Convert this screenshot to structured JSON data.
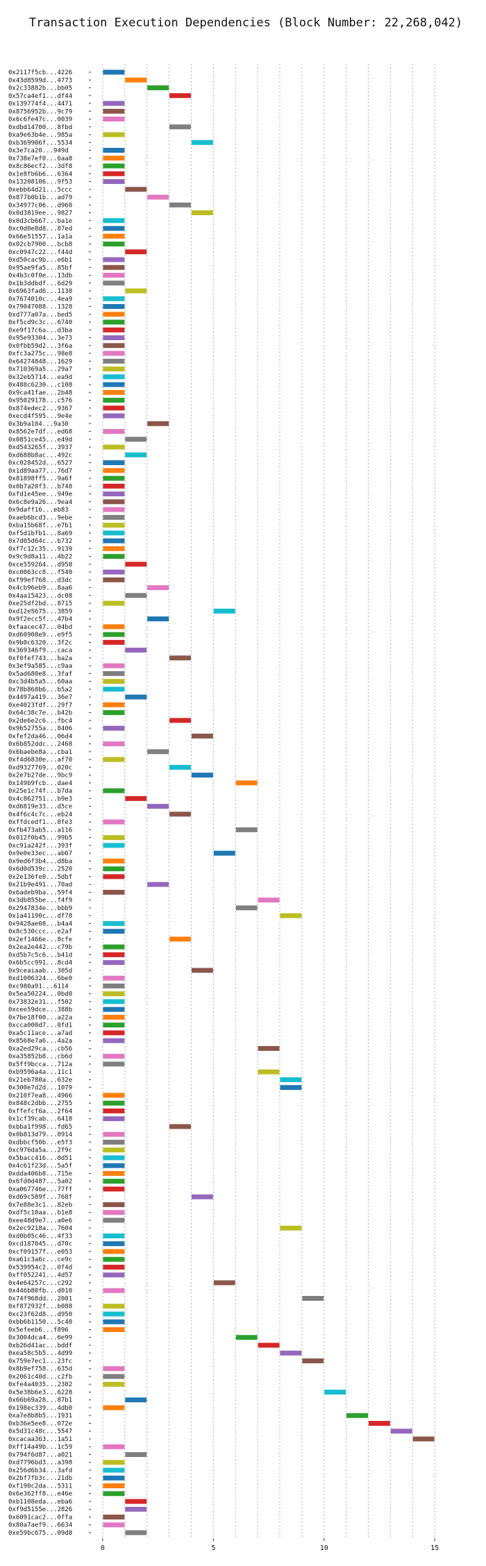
{
  "chart_data": {
    "type": "bar",
    "title": "Transaction Execution Dependencies (Block Number: 22,268,042)",
    "xlabel": "",
    "ylabel": "",
    "xlim": [
      -0.5,
      16
    ],
    "x_ticks": [
      0,
      5,
      10,
      15
    ],
    "grid": "vertical dotted",
    "palette": [
      "#1f77b4",
      "#ff7f0e",
      "#2ca02c",
      "#d62728",
      "#9467bd",
      "#8c564b",
      "#e377c2",
      "#7f7f7f",
      "#bcbd22",
      "#17becf"
    ],
    "transactions": [
      {
        "label": "0x2117f5cb...4226",
        "start": 0,
        "end": 1
      },
      {
        "label": "0x43d8599d...4773",
        "start": 1,
        "end": 2
      },
      {
        "label": "0x2c33882b...bb05",
        "start": 2,
        "end": 3
      },
      {
        "label": "0x57ca4ef1...df44",
        "start": 3,
        "end": 4
      },
      {
        "label": "0x139774f4...4471",
        "start": 0,
        "end": 1
      },
      {
        "label": "0x8756952b...9c79",
        "start": 0,
        "end": 1
      },
      {
        "label": "0x6c6fe47c...0039",
        "start": 0,
        "end": 1
      },
      {
        "label": "0xdbd14700...8fbd",
        "start": 3,
        "end": 4
      },
      {
        "label": "0xa9e63b4e...985a",
        "start": 0,
        "end": 1
      },
      {
        "label": "0xb369906f...5534",
        "start": 4,
        "end": 5
      },
      {
        "label": "0x3e7ca20...949d",
        "start": 0,
        "end": 1
      },
      {
        "label": "0x738e7ef0...6aa8",
        "start": 0,
        "end": 1
      },
      {
        "label": "0x8c86ecf2...3df8",
        "start": 0,
        "end": 1
      },
      {
        "label": "0x1e8fb6b6...6364",
        "start": 0,
        "end": 1
      },
      {
        "label": "0x13208106...9f53",
        "start": 0,
        "end": 1
      },
      {
        "label": "0xebb64d21...5ccc",
        "start": 1,
        "end": 2
      },
      {
        "label": "0x877b0b1b...ad79",
        "start": 2,
        "end": 3
      },
      {
        "label": "0x34977c06...d960",
        "start": 3,
        "end": 4
      },
      {
        "label": "0x0d3819ee...9827",
        "start": 4,
        "end": 5
      },
      {
        "label": "0x0d3cb667...ba1e",
        "start": 0,
        "end": 1
      },
      {
        "label": "0xc0d0e8d8...87ed",
        "start": 0,
        "end": 1
      },
      {
        "label": "0x66e51557...1a1a",
        "start": 0,
        "end": 1
      },
      {
        "label": "0x02cb7900...bcb8",
        "start": 0,
        "end": 1
      },
      {
        "label": "0xc0947c22...f44d",
        "start": 1,
        "end": 2
      },
      {
        "label": "0xd50cac9b...e6b1",
        "start": 0,
        "end": 1
      },
      {
        "label": "0x95ae9fa5...85bf",
        "start": 0,
        "end": 1
      },
      {
        "label": "0x4b3c0f0e...13db",
        "start": 0,
        "end": 1
      },
      {
        "label": "0x1b3ddbdf...6d29",
        "start": 0,
        "end": 1
      },
      {
        "label": "0x6963fad6...1130",
        "start": 1,
        "end": 2
      },
      {
        "label": "0x7674010c...4ea9",
        "start": 0,
        "end": 1
      },
      {
        "label": "0x79047088...1328",
        "start": 0,
        "end": 1
      },
      {
        "label": "0xd777a07a...bed5",
        "start": 0,
        "end": 1
      },
      {
        "label": "0xf5cd9c3c...6740",
        "start": 0,
        "end": 1
      },
      {
        "label": "0xe9f17c6a...d3ba",
        "start": 0,
        "end": 1
      },
      {
        "label": "0x95e93304...3e73",
        "start": 0,
        "end": 1
      },
      {
        "label": "0x0fbb59d2...3f6a",
        "start": 0,
        "end": 1
      },
      {
        "label": "0xfc3a275c...98e8",
        "start": 0,
        "end": 1
      },
      {
        "label": "0x64274848...1629",
        "start": 0,
        "end": 1
      },
      {
        "label": "0x710369a5...29a7",
        "start": 0,
        "end": 1
      },
      {
        "label": "0x32eb5714...ea9d",
        "start": 0,
        "end": 1
      },
      {
        "label": "0x488c6230...c108",
        "start": 0,
        "end": 1
      },
      {
        "label": "0x9ca41fae...2b48",
        "start": 0,
        "end": 1
      },
      {
        "label": "0x95029178...c576",
        "start": 0,
        "end": 1
      },
      {
        "label": "0x874edec2...9367",
        "start": 0,
        "end": 1
      },
      {
        "label": "0xecd4f595...9e4e",
        "start": 0,
        "end": 1
      },
      {
        "label": "0x3b9a104...9a30",
        "start": 2,
        "end": 3
      },
      {
        "label": "0x8562e7df...ed68",
        "start": 0,
        "end": 1
      },
      {
        "label": "0x0851ce45...e49d",
        "start": 1,
        "end": 2
      },
      {
        "label": "0xd543265f...3937",
        "start": 0,
        "end": 1
      },
      {
        "label": "0xd688b8ac...492c",
        "start": 1,
        "end": 2
      },
      {
        "label": "0xc028452d...6527",
        "start": 0,
        "end": 1
      },
      {
        "label": "0x1d89aa77...76d7",
        "start": 0,
        "end": 1
      },
      {
        "label": "0x81898ff5...9a6f",
        "start": 0,
        "end": 1
      },
      {
        "label": "0x0b7a20f3...b748",
        "start": 0,
        "end": 1
      },
      {
        "label": "0xfd1e45ee...949e",
        "start": 0,
        "end": 1
      },
      {
        "label": "0x6c8e9a26...9ea4",
        "start": 0,
        "end": 1
      },
      {
        "label": "0x9daff16...eb83",
        "start": 0,
        "end": 1
      },
      {
        "label": "0xaeb6bcd3...9ebe",
        "start": 0,
        "end": 1
      },
      {
        "label": "0xba15b68f...e7b1",
        "start": 0,
        "end": 1
      },
      {
        "label": "0xf5d1bfb1...8a69",
        "start": 0,
        "end": 1
      },
      {
        "label": "0x7d05d64c...b732",
        "start": 0,
        "end": 1
      },
      {
        "label": "0xf7c12c35...9139",
        "start": 0,
        "end": 1
      },
      {
        "label": "0x9c9d8a11...4b22",
        "start": 0,
        "end": 1
      },
      {
        "label": "0xce559264...d958",
        "start": 1,
        "end": 2
      },
      {
        "label": "0xc0063cc8...f540",
        "start": 0,
        "end": 1
      },
      {
        "label": "0xf99ef768...d3dc",
        "start": 0,
        "end": 1
      },
      {
        "label": "0x4cb96eb9...8aa6",
        "start": 2,
        "end": 3
      },
      {
        "label": "0x4aa15423...dc08",
        "start": 1,
        "end": 2
      },
      {
        "label": "0xe25df2bd...8715",
        "start": 0,
        "end": 1
      },
      {
        "label": "0xd12e5675...3859",
        "start": 5,
        "end": 6
      },
      {
        "label": "0x9f2ecc5f...47b4",
        "start": 2,
        "end": 3
      },
      {
        "label": "0xfaacec47...04bd",
        "start": 0,
        "end": 1
      },
      {
        "label": "0xd60908e9...e9f5",
        "start": 0,
        "end": 1
      },
      {
        "label": "0x9b0c6320...3f2c",
        "start": 0,
        "end": 1
      },
      {
        "label": "0x369346f9...caca",
        "start": 1,
        "end": 2
      },
      {
        "label": "0xf0fef743...ba2a",
        "start": 3,
        "end": 4
      },
      {
        "label": "0x3ef9a585...c9aa",
        "start": 0,
        "end": 1
      },
      {
        "label": "0x5ad680e8...3faf",
        "start": 0,
        "end": 1
      },
      {
        "label": "0xc3d4b5a5...60aa",
        "start": 0,
        "end": 1
      },
      {
        "label": "0x78b868b6...b5a2",
        "start": 0,
        "end": 1
      },
      {
        "label": "0x4497a419...36e7",
        "start": 1,
        "end": 2
      },
      {
        "label": "0xe4023fdf...29f7",
        "start": 0,
        "end": 1
      },
      {
        "label": "0x64c38c7e...b42b",
        "start": 0,
        "end": 1
      },
      {
        "label": "0x2de6e2c6...fbc4",
        "start": 3,
        "end": 4
      },
      {
        "label": "0x9b52755a...8406",
        "start": 0,
        "end": 1
      },
      {
        "label": "0xfef2da46...06d4",
        "start": 4,
        "end": 5
      },
      {
        "label": "0x6b852ddc...2468",
        "start": 0,
        "end": 1
      },
      {
        "label": "0x6baebe8a...cba1",
        "start": 2,
        "end": 3
      },
      {
        "label": "0xf4d6830e...af70",
        "start": 0,
        "end": 1
      },
      {
        "label": "0xd9327769...020c",
        "start": 3,
        "end": 4
      },
      {
        "label": "0x2e7b27de...9bc9",
        "start": 4,
        "end": 5
      },
      {
        "label": "0x149b9fcb...dae4",
        "start": 6,
        "end": 7
      },
      {
        "label": "0x25e1c74f...b7da",
        "start": 0,
        "end": 1
      },
      {
        "label": "0x4c862751...b9e3",
        "start": 1,
        "end": 2
      },
      {
        "label": "0xd6819e33...d5ce",
        "start": 2,
        "end": 3
      },
      {
        "label": "0x4f6c4c7c...eb24",
        "start": 3,
        "end": 4
      },
      {
        "label": "0xffdcedf1...8fe3",
        "start": 0,
        "end": 1
      },
      {
        "label": "0xfb473ab5...a116",
        "start": 6,
        "end": 7
      },
      {
        "label": "0x012f0b45...99b5",
        "start": 0,
        "end": 1
      },
      {
        "label": "0xc91a242f...393f",
        "start": 0,
        "end": 1
      },
      {
        "label": "0x9e0e33ec...ab67",
        "start": 5,
        "end": 6
      },
      {
        "label": "0x9ed6f3b4...d8ba",
        "start": 0,
        "end": 1
      },
      {
        "label": "0x6d0d539c...2520",
        "start": 0,
        "end": 1
      },
      {
        "label": "0x2e136fe0...5dbf",
        "start": 0,
        "end": 1
      },
      {
        "label": "0x21b9e491...70ad",
        "start": 2,
        "end": 3
      },
      {
        "label": "0x6adeb9ba...59f4",
        "start": 0,
        "end": 1
      },
      {
        "label": "0x3db855be...f4f9",
        "start": 7,
        "end": 8
      },
      {
        "label": "0x2947834e...bbb9",
        "start": 6,
        "end": 7
      },
      {
        "label": "0x1a41190c...df78",
        "start": 8,
        "end": 9
      },
      {
        "label": "0x9428ae08...b4a4",
        "start": 0,
        "end": 1
      },
      {
        "label": "0x8c530ccc...e2af",
        "start": 0,
        "end": 1
      },
      {
        "label": "0x2ef1466e...8cfe",
        "start": 3,
        "end": 4
      },
      {
        "label": "0x2ea2e442...c79b",
        "start": 0,
        "end": 1
      },
      {
        "label": "0xd5b7c5c6...b41d",
        "start": 0,
        "end": 1
      },
      {
        "label": "0x6b5cc991...8cd4",
        "start": 0,
        "end": 1
      },
      {
        "label": "0x9ceaiaab...305d",
        "start": 4,
        "end": 5
      },
      {
        "label": "0xd1006324...6be0",
        "start": 0,
        "end": 1
      },
      {
        "label": "0xc980a91...6114",
        "start": 0,
        "end": 1
      },
      {
        "label": "0x5ea50224...0bd0",
        "start": 0,
        "end": 1
      },
      {
        "label": "0x73832e31...f502",
        "start": 0,
        "end": 1
      },
      {
        "label": "0xcee59dce...388b",
        "start": 0,
        "end": 1
      },
      {
        "label": "0x7be18f00...a22a",
        "start": 0,
        "end": 1
      },
      {
        "label": "0xcca000d7...0fd1",
        "start": 0,
        "end": 1
      },
      {
        "label": "0xa5c11ace...a7ad",
        "start": 0,
        "end": 1
      },
      {
        "label": "0x8568e7a6...4a2a",
        "start": 0,
        "end": 1
      },
      {
        "label": "0xa2ed29ca...cb56",
        "start": 7,
        "end": 8
      },
      {
        "label": "0xa35852b8...cb6d",
        "start": 0,
        "end": 1
      },
      {
        "label": "0x5ff9bcca...712a",
        "start": 0,
        "end": 1
      },
      {
        "label": "0xb9596a4a...11c1",
        "start": 7,
        "end": 8
      },
      {
        "label": "0x21eb780a...632e",
        "start": 8,
        "end": 9
      },
      {
        "label": "0x300e7d2d...1079",
        "start": 8,
        "end": 9
      },
      {
        "label": "0x210f7ea8...4966",
        "start": 0,
        "end": 1
      },
      {
        "label": "0x848c2dbb...2755",
        "start": 0,
        "end": 1
      },
      {
        "label": "0xffefcf6a...2f64",
        "start": 0,
        "end": 1
      },
      {
        "label": "0x1cf39cab...6418",
        "start": 0,
        "end": 1
      },
      {
        "label": "0xbba1f998...fd65",
        "start": 3,
        "end": 4
      },
      {
        "label": "0x0b813d79...8914",
        "start": 0,
        "end": 1
      },
      {
        "label": "0xdbbcf50b...e5f3",
        "start": 0,
        "end": 1
      },
      {
        "label": "0xc976da5a...2f9c",
        "start": 0,
        "end": 1
      },
      {
        "label": "0x5bacc416...0d51",
        "start": 0,
        "end": 1
      },
      {
        "label": "0x4c61f23d...5a5f",
        "start": 0,
        "end": 1
      },
      {
        "label": "0xdda406b8...715e",
        "start": 0,
        "end": 1
      },
      {
        "label": "0x6fd0d487...5a02",
        "start": 0,
        "end": 1
      },
      {
        "label": "0xa067746e...77ff",
        "start": 0,
        "end": 1
      },
      {
        "label": "0xd69c589f...768f",
        "start": 4,
        "end": 5
      },
      {
        "label": "0x7e88e3c1...82eb",
        "start": 0,
        "end": 1
      },
      {
        "label": "0xdf5c10aa...b1e8",
        "start": 0,
        "end": 1
      },
      {
        "label": "0xee48d9e7...a0e6",
        "start": 0,
        "end": 1
      },
      {
        "label": "0x2ec9218a...7604",
        "start": 8,
        "end": 9
      },
      {
        "label": "0xd0b05c46...4f33",
        "start": 0,
        "end": 1
      },
      {
        "label": "0xcd187045...d70c",
        "start": 0,
        "end": 1
      },
      {
        "label": "0xcf09157f...e053",
        "start": 0,
        "end": 1
      },
      {
        "label": "0xa61c3a6c...ce9c",
        "start": 0,
        "end": 1
      },
      {
        "label": "0x539954c2...0f4d",
        "start": 0,
        "end": 1
      },
      {
        "label": "0xff052241...4d57",
        "start": 0,
        "end": 1
      },
      {
        "label": "0x4e64257c...c292",
        "start": 5,
        "end": 6
      },
      {
        "label": "0x446b80fb...d010",
        "start": 0,
        "end": 1
      },
      {
        "label": "0x74f968dd...2001",
        "start": 9,
        "end": 10
      },
      {
        "label": "0xf872932f...b088",
        "start": 0,
        "end": 1
      },
      {
        "label": "0xc23f62d8...d950",
        "start": 0,
        "end": 1
      },
      {
        "label": "0xbb6b1150...5c40",
        "start": 0,
        "end": 1
      },
      {
        "label": "0x5efeeb6...f896",
        "start": 0,
        "end": 1
      },
      {
        "label": "0x3004dca4...6e99",
        "start": 6,
        "end": 7
      },
      {
        "label": "0xb26d41ac...bddf",
        "start": 7,
        "end": 8
      },
      {
        "label": "0xea58c5b5...4d99",
        "start": 8,
        "end": 9
      },
      {
        "label": "0x759e7ec1...23fc",
        "start": 9,
        "end": 10
      },
      {
        "label": "0x8b9ef758...635d",
        "start": 0,
        "end": 1
      },
      {
        "label": "0x2061c40d...c2fb",
        "start": 0,
        "end": 1
      },
      {
        "label": "0xfe4a4035...2302",
        "start": 0,
        "end": 1
      },
      {
        "label": "0x5e38b6e3...6228",
        "start": 10,
        "end": 11
      },
      {
        "label": "0x66b69a28...87b1",
        "start": 1,
        "end": 2
      },
      {
        "label": "0x198ec339...4db0",
        "start": 0,
        "end": 1
      },
      {
        "label": "0xa7e8b8b5...1931",
        "start": 11,
        "end": 12
      },
      {
        "label": "0xb36e5ee8...072e",
        "start": 12,
        "end": 13
      },
      {
        "label": "0x5d31c48c...5547",
        "start": 13,
        "end": 14
      },
      {
        "label": "0xcacaa363...1a51",
        "start": 14,
        "end": 15
      },
      {
        "label": "0xff14a49b...1c59",
        "start": 0,
        "end": 1
      },
      {
        "label": "0x794f6d87...a021",
        "start": 1,
        "end": 2
      },
      {
        "label": "0xd7796bd3...a398",
        "start": 0,
        "end": 1
      },
      {
        "label": "0x256d6b34...3afd",
        "start": 0,
        "end": 1
      },
      {
        "label": "0x2bf7fb3c...21db",
        "start": 0,
        "end": 1
      },
      {
        "label": "0xf190c2da...5311",
        "start": 0,
        "end": 1
      },
      {
        "label": "0x6e362ff8...e46e",
        "start": 0,
        "end": 1
      },
      {
        "label": "0xb1108eda...eba6",
        "start": 1,
        "end": 2
      },
      {
        "label": "0xf9d5155e...2826",
        "start": 1,
        "end": 2
      },
      {
        "label": "0x6091cac2...0ffa",
        "start": 0,
        "end": 1
      },
      {
        "label": "0x80a7aef9...6634",
        "start": 0,
        "end": 1
      },
      {
        "label": "0xe59bc675...09d8",
        "start": 1,
        "end": 2
      }
    ]
  }
}
